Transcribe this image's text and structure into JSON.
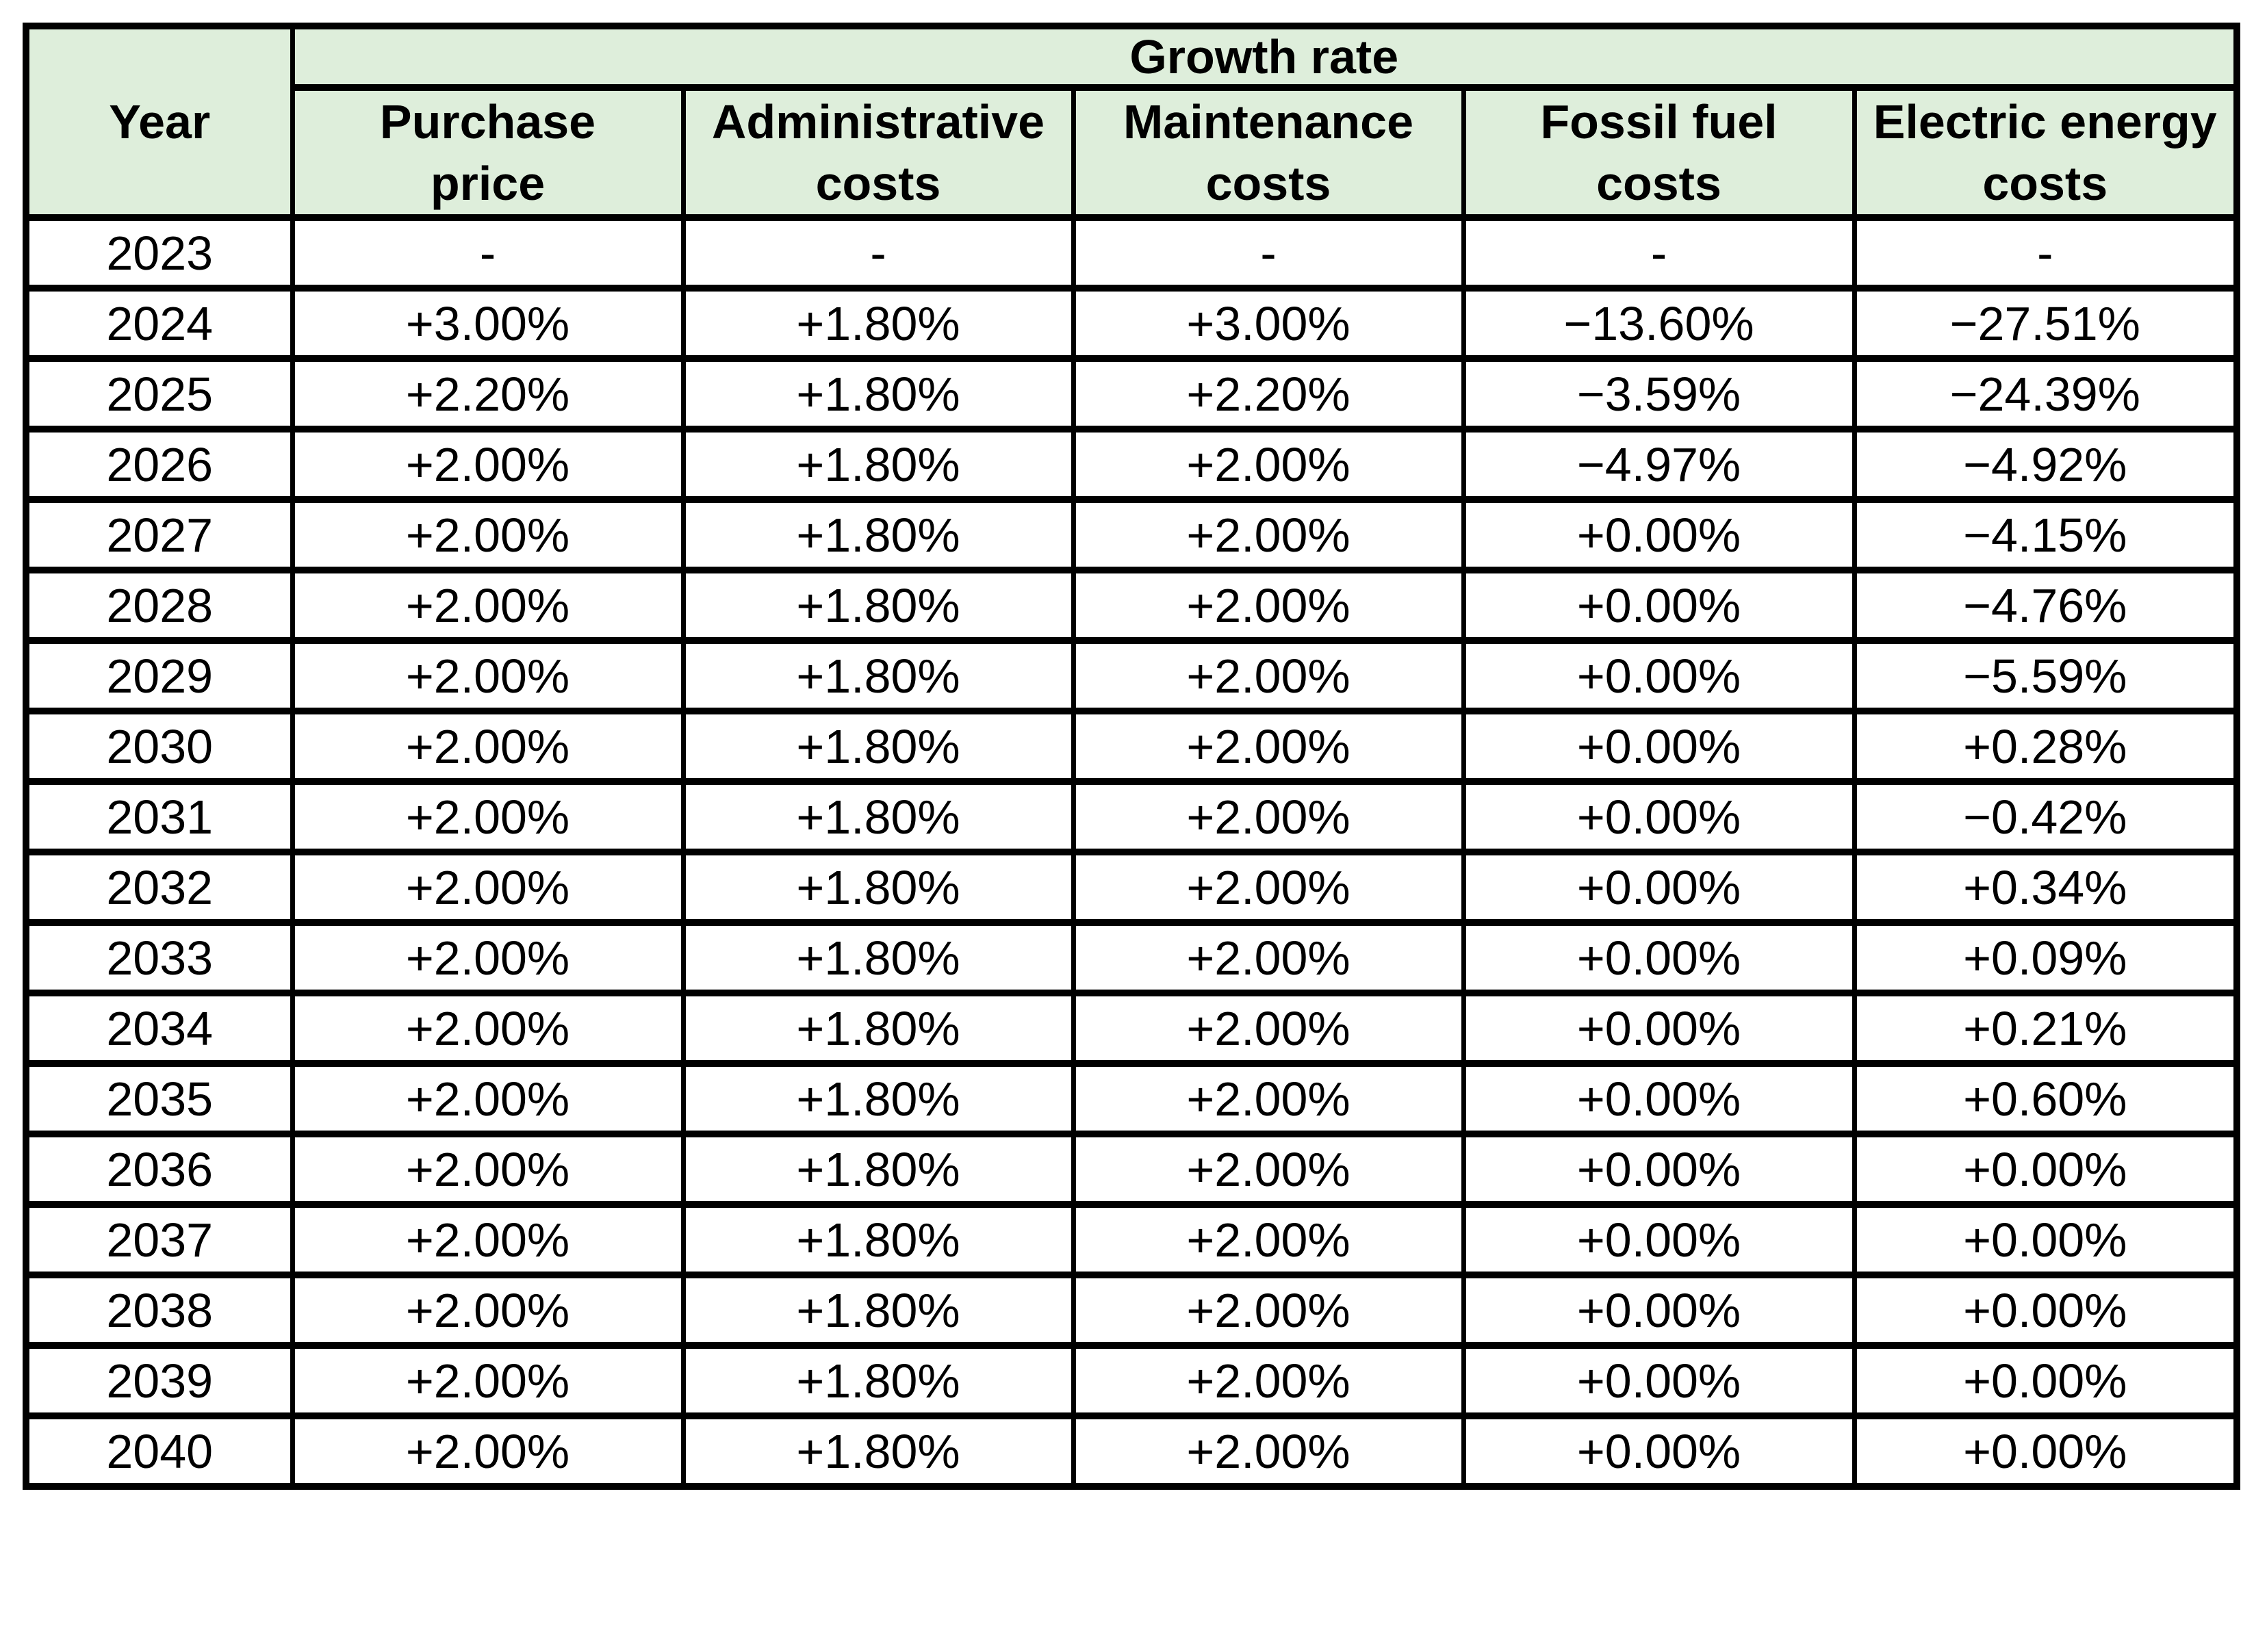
{
  "colors": {
    "header_bg": "#deeedb",
    "border": "#000000",
    "page_bg": "#ffffff",
    "text": "#000000"
  },
  "table": {
    "corner_header": "Year",
    "group_header": "Growth rate",
    "sub_headers": [
      {
        "top": "Purchase",
        "bottom": "price"
      },
      {
        "top": "Administrative",
        "bottom": "costs"
      },
      {
        "top": "Maintenance",
        "bottom": "costs"
      },
      {
        "top": "Fossil fuel",
        "bottom": "costs"
      },
      {
        "top": "Electric energy",
        "bottom": "costs"
      }
    ],
    "rows": [
      {
        "year": "2023",
        "values": [
          "-",
          "-",
          "-",
          "-",
          "-"
        ]
      },
      {
        "year": "2024",
        "values": [
          "+3.00%",
          "+1.80%",
          "+3.00%",
          "−13.60%",
          "−27.51%"
        ]
      },
      {
        "year": "2025",
        "values": [
          "+2.20%",
          "+1.80%",
          "+2.20%",
          "−3.59%",
          "−24.39%"
        ]
      },
      {
        "year": "2026",
        "values": [
          "+2.00%",
          "+1.80%",
          "+2.00%",
          "−4.97%",
          "−4.92%"
        ]
      },
      {
        "year": "2027",
        "values": [
          "+2.00%",
          "+1.80%",
          "+2.00%",
          "+0.00%",
          "−4.15%"
        ]
      },
      {
        "year": "2028",
        "values": [
          "+2.00%",
          "+1.80%",
          "+2.00%",
          "+0.00%",
          "−4.76%"
        ]
      },
      {
        "year": "2029",
        "values": [
          "+2.00%",
          "+1.80%",
          "+2.00%",
          "+0.00%",
          "−5.59%"
        ]
      },
      {
        "year": "2030",
        "values": [
          "+2.00%",
          "+1.80%",
          "+2.00%",
          "+0.00%",
          "+0.28%"
        ]
      },
      {
        "year": "2031",
        "values": [
          "+2.00%",
          "+1.80%",
          "+2.00%",
          "+0.00%",
          "−0.42%"
        ]
      },
      {
        "year": "2032",
        "values": [
          "+2.00%",
          "+1.80%",
          "+2.00%",
          "+0.00%",
          "+0.34%"
        ]
      },
      {
        "year": "2033",
        "values": [
          "+2.00%",
          "+1.80%",
          "+2.00%",
          "+0.00%",
          "+0.09%"
        ]
      },
      {
        "year": "2034",
        "values": [
          "+2.00%",
          "+1.80%",
          "+2.00%",
          "+0.00%",
          "+0.21%"
        ]
      },
      {
        "year": "2035",
        "values": [
          "+2.00%",
          "+1.80%",
          "+2.00%",
          "+0.00%",
          "+0.60%"
        ]
      },
      {
        "year": "2036",
        "values": [
          "+2.00%",
          "+1.80%",
          "+2.00%",
          "+0.00%",
          "+0.00%"
        ]
      },
      {
        "year": "2037",
        "values": [
          "+2.00%",
          "+1.80%",
          "+2.00%",
          "+0.00%",
          "+0.00%"
        ]
      },
      {
        "year": "2038",
        "values": [
          "+2.00%",
          "+1.80%",
          "+2.00%",
          "+0.00%",
          "+0.00%"
        ]
      },
      {
        "year": "2039",
        "values": [
          "+2.00%",
          "+1.80%",
          "+2.00%",
          "+0.00%",
          "+0.00%"
        ]
      },
      {
        "year": "2040",
        "values": [
          "+2.00%",
          "+1.80%",
          "+2.00%",
          "+0.00%",
          "+0.00%"
        ]
      }
    ]
  }
}
